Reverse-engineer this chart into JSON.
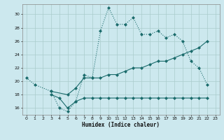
{
  "xlabel": "Humidex (Indice chaleur)",
  "xlim": [
    -0.5,
    23.5
  ],
  "ylim": [
    15.0,
    31.5
  ],
  "yticks": [
    16,
    18,
    20,
    22,
    24,
    26,
    28,
    30
  ],
  "xticks": [
    0,
    1,
    2,
    3,
    4,
    5,
    6,
    7,
    8,
    9,
    10,
    11,
    12,
    13,
    14,
    15,
    16,
    17,
    18,
    19,
    20,
    21,
    22,
    23
  ],
  "bg_color": "#cce8ee",
  "grid_color": "#aacccc",
  "line_color": "#1a6b6b",
  "line1_x": [
    0,
    1,
    3,
    4,
    5,
    6,
    7,
    8,
    9,
    10,
    11,
    12,
    13,
    14,
    15,
    16,
    17,
    18,
    19,
    20,
    21,
    22
  ],
  "line1_y": [
    20.5,
    19.5,
    18.5,
    16.0,
    15.5,
    17.0,
    21.0,
    20.5,
    27.5,
    31.0,
    28.5,
    28.5,
    29.5,
    27.0,
    27.0,
    27.5,
    26.5,
    27.0,
    26.0,
    23.0,
    22.0,
    19.5
  ],
  "line2_x": [
    3,
    5,
    6,
    7,
    8,
    9,
    10,
    11,
    12,
    13,
    14,
    15,
    16,
    17,
    18,
    19,
    20,
    21,
    22
  ],
  "line2_y": [
    18.5,
    18.0,
    19.0,
    20.5,
    20.5,
    20.5,
    21.0,
    21.0,
    21.5,
    22.0,
    22.0,
    22.5,
    23.0,
    23.0,
    23.5,
    24.0,
    24.5,
    25.0,
    26.0
  ],
  "line3_x": [
    3,
    4,
    5,
    6,
    7,
    8,
    9,
    10,
    11,
    12,
    13,
    14,
    15,
    16,
    17,
    18,
    19,
    20,
    21,
    22
  ],
  "line3_y": [
    18.0,
    17.5,
    16.0,
    17.0,
    17.5,
    17.5,
    17.5,
    17.5,
    17.5,
    17.5,
    17.5,
    17.5,
    17.5,
    17.5,
    17.5,
    17.5,
    17.5,
    17.5,
    17.5,
    17.5
  ]
}
